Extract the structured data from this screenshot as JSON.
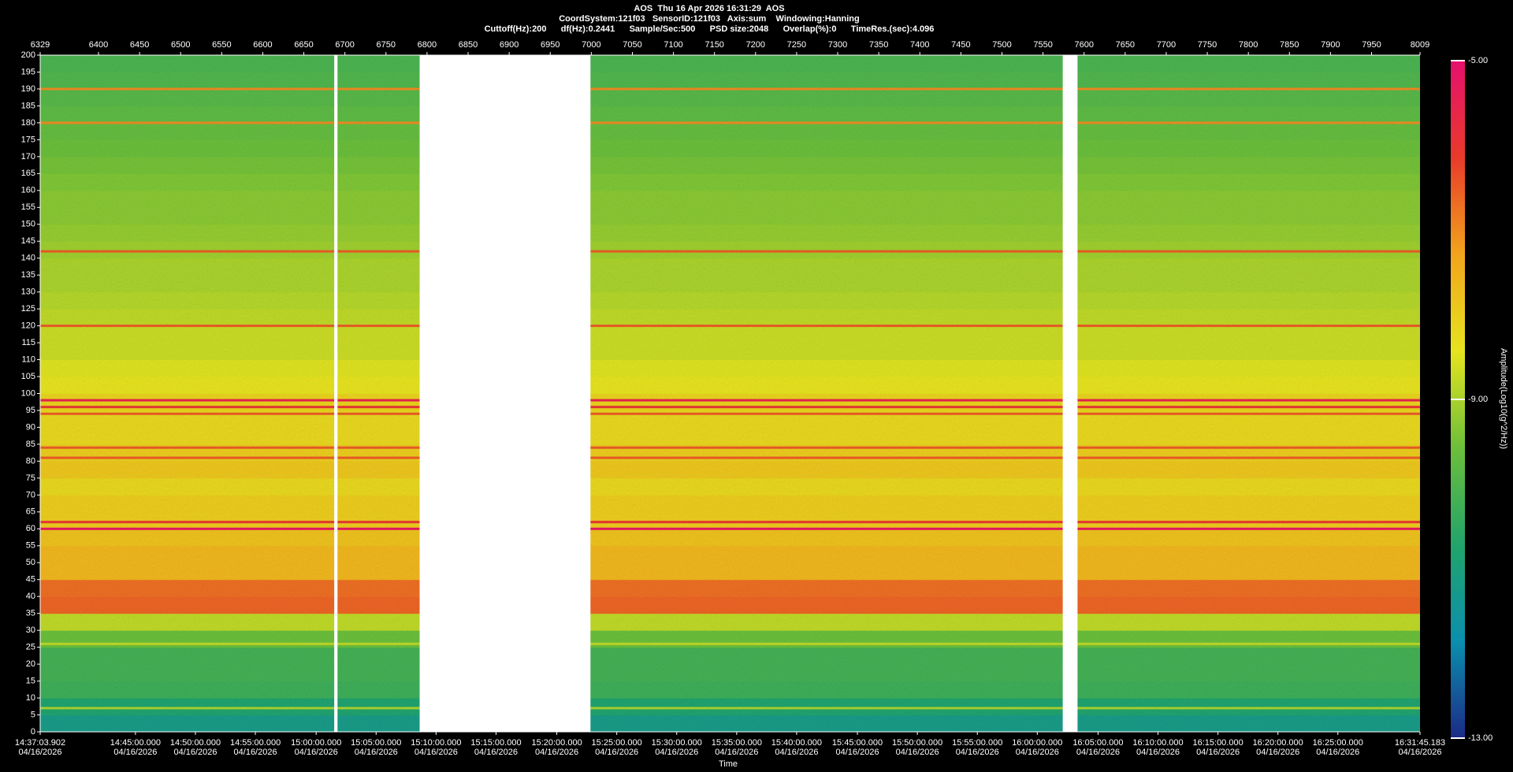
{
  "chart_data": {
    "type": "spectrogram",
    "title": "AOS  Thu 16 Apr 2026 16:31:29  AOS",
    "subtitle_lines": [
      "CoordSystem:121f03   SensorID:121f03   Axis:sum    Windowing:Hanning",
      "Cuttoff(Hz):200      df(Hz):0.2441      Sample/Sec:500      PSD size:2048      Overlap(%):0      TimeRes.(sec):4.096"
    ],
    "xlabel": "Time",
    "colorbar_label": "Amplitude(Log10(g^2/Hz))",
    "xlim": [
      6329,
      8009
    ],
    "xticks": [
      6329,
      6400,
      6450,
      6500,
      6550,
      6600,
      6650,
      6700,
      6750,
      6800,
      6850,
      6900,
      6950,
      7000,
      7050,
      7100,
      7150,
      7200,
      7250,
      7300,
      7350,
      7400,
      7450,
      7500,
      7550,
      7600,
      7650,
      7700,
      7750,
      7800,
      7850,
      7900,
      7950,
      8009
    ],
    "time_date": "04/16/2026",
    "time_ticks": [
      {
        "value": 6329,
        "label": "14:37:03.902"
      },
      {
        "value": 6445,
        "label": "14:45:00.000"
      },
      {
        "value": 6518,
        "label": "14:50:00.000"
      },
      {
        "value": 6591,
        "label": "14:55:00.000"
      },
      {
        "value": 6665,
        "label": "15:00:00.000"
      },
      {
        "value": 6738,
        "label": "15:05:00.000"
      },
      {
        "value": 6811,
        "label": "15:10:00.000"
      },
      {
        "value": 6884,
        "label": "15:15:00.000"
      },
      {
        "value": 6958,
        "label": "15:20:00.000"
      },
      {
        "value": 7031,
        "label": "15:25:00.000"
      },
      {
        "value": 7104,
        "label": "15:30:00.000"
      },
      {
        "value": 7177,
        "label": "15:35:00.000"
      },
      {
        "value": 7250,
        "label": "15:40:00.000"
      },
      {
        "value": 7324,
        "label": "15:45:00.000"
      },
      {
        "value": 7397,
        "label": "15:50:00.000"
      },
      {
        "value": 7470,
        "label": "15:55:00.000"
      },
      {
        "value": 7543,
        "label": "16:00:00.000"
      },
      {
        "value": 7617,
        "label": "16:05:00.000"
      },
      {
        "value": 7690,
        "label": "16:10:00.000"
      },
      {
        "value": 7763,
        "label": "16:15:00.000"
      },
      {
        "value": 7836,
        "label": "16:20:00.000"
      },
      {
        "value": 7909,
        "label": "16:25:00.000"
      },
      {
        "value": 8009,
        "label": "16:31:45.183"
      }
    ],
    "ylim": [
      0,
      200
    ],
    "yticks": [
      0,
      5,
      10,
      15,
      20,
      25,
      30,
      35,
      40,
      45,
      50,
      55,
      60,
      65,
      70,
      75,
      80,
      85,
      90,
      95,
      100,
      105,
      110,
      115,
      120,
      125,
      130,
      135,
      140,
      145,
      150,
      155,
      160,
      165,
      170,
      175,
      180,
      185,
      190,
      195,
      200
    ],
    "band_edges": [
      0,
      5,
      10,
      15,
      20,
      25,
      30,
      35,
      40,
      45,
      50,
      55,
      60,
      65,
      70,
      75,
      80,
      85,
      90,
      95,
      100,
      105,
      110,
      115,
      120,
      125,
      130,
      135,
      140,
      145,
      150,
      155,
      160,
      165,
      170,
      175,
      180,
      185,
      190,
      195,
      200
    ],
    "amplitudes": [
      -11.2,
      -10.8,
      -10.3,
      -10.2,
      -10.2,
      -9.6,
      -8.8,
      -6.6,
      -6.7,
      -7.6,
      -7.6,
      -7.8,
      -8.0,
      -8.0,
      -8.2,
      -7.9,
      -8.0,
      -8.2,
      -8.2,
      -8.1,
      -8.4,
      -8.5,
      -8.7,
      -8.7,
      -8.8,
      -8.9,
      -9.0,
      -9.0,
      -9.1,
      -9.2,
      -9.3,
      -9.3,
      -9.4,
      -9.5,
      -9.6,
      -9.7,
      -9.8,
      -9.9,
      -10.0,
      -10.1
    ],
    "tone_frequencies": [
      7,
      26,
      60,
      62,
      81,
      84,
      94,
      96,
      98,
      120,
      142,
      180,
      190
    ],
    "tone_amplitudes": [
      -9.0,
      -8.8,
      -5.2,
      -6.0,
      -6.5,
      -6.5,
      -6.5,
      -6.0,
      -5.5,
      -6.5,
      -6.5,
      -7.0,
      -7.0
    ],
    "gaps": [
      [
        6687,
        6691
      ],
      [
        6791,
        6999
      ],
      [
        7574,
        7592
      ]
    ],
    "clim": [
      -13,
      -5
    ],
    "cticks": [
      {
        "value": -5,
        "label": "-5.00"
      },
      {
        "value": -9,
        "label": "-9.00"
      },
      {
        "value": -13,
        "label": "-13.00"
      }
    ],
    "colormap": [
      "#1c2a86",
      "#0b8fae",
      "#22a46a",
      "#6cbf3a",
      "#e6e41e",
      "#f2a41c",
      "#e83a2a",
      "#e6106e"
    ]
  }
}
